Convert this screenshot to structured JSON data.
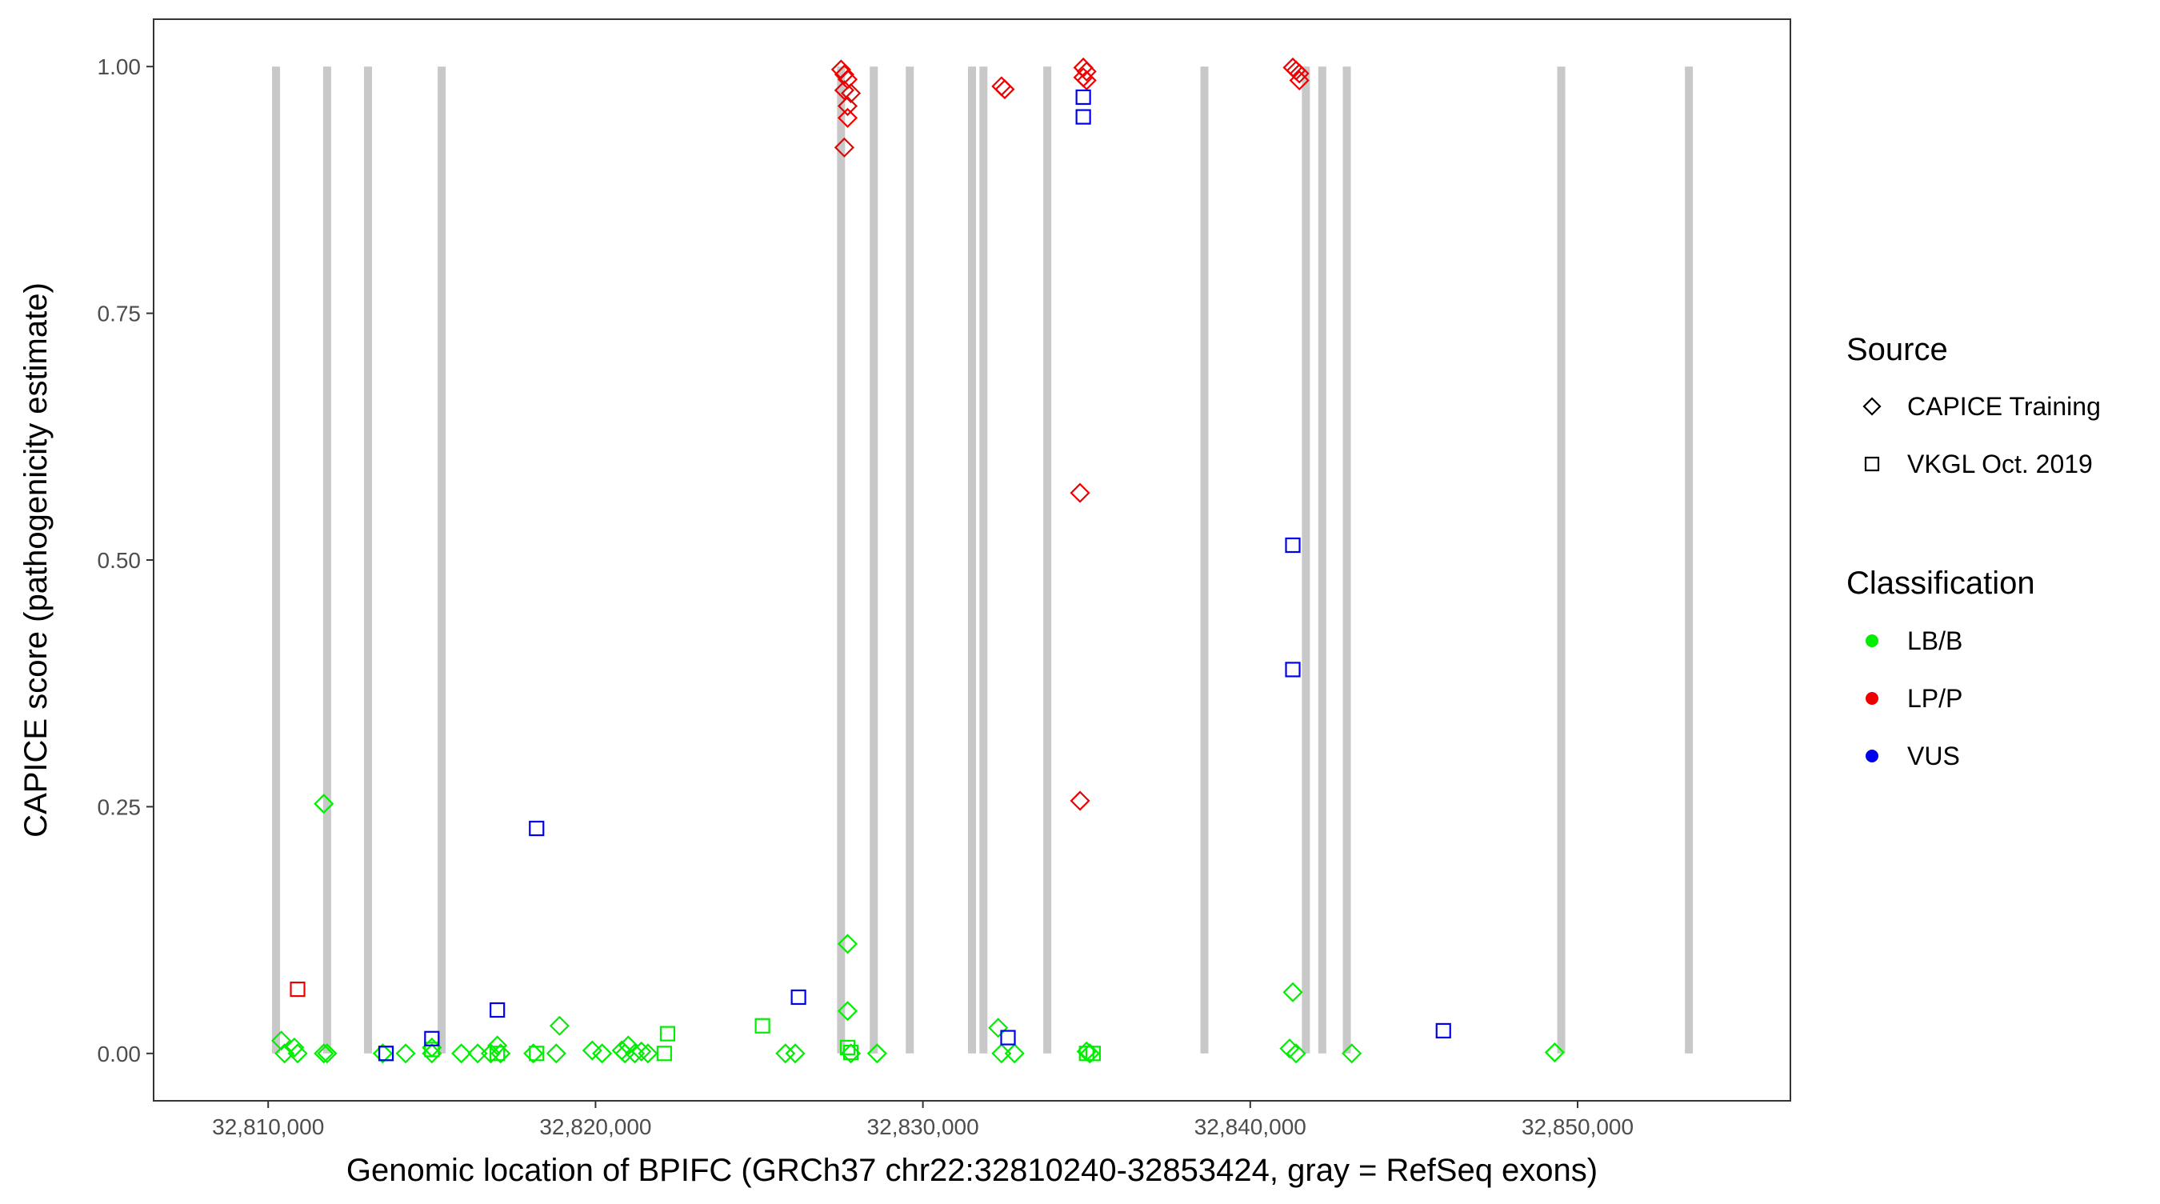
{
  "chart_data": {
    "type": "scatter",
    "title": "",
    "xlabel": "Genomic location of BPIFC (GRCh37 chr22:32810240-32853424, gray = RefSeq exons)",
    "ylabel": "CAPICE score (pathogenicity estimate)",
    "xlim": [
      32806500,
      32856500
    ],
    "ylim": [
      -0.048,
      1.048
    ],
    "x_ticks": [
      32810000,
      32820000,
      32830000,
      32840000,
      32850000
    ],
    "x_tick_labels": [
      "32,810,000",
      "32,820,000",
      "32,830,000",
      "32,840,000",
      "32,850,000"
    ],
    "y_ticks": [
      0,
      0.25,
      0.5,
      0.75,
      1
    ],
    "y_tick_labels": [
      "0.00",
      "0.25",
      "0.50",
      "0.75",
      "1.00"
    ],
    "grid": false,
    "legend_position": "right",
    "exon_color": "#c8c8c8",
    "exons": [
      32810240,
      32811800,
      32813050,
      32815300,
      32827500,
      32828500,
      32829600,
      32831500,
      32831850,
      32833800,
      32838600,
      32841700,
      32842200,
      32842950,
      32849500,
      32853400
    ],
    "legend": {
      "source_title": "Source",
      "source_items": [
        {
          "label": "CAPICE Training",
          "shape": "diamond"
        },
        {
          "label": "VKGL Oct. 2019",
          "shape": "square"
        }
      ],
      "class_title": "Classification",
      "class_items": [
        {
          "label": "LB/B",
          "color": "#00ee00"
        },
        {
          "label": "LP/P",
          "color": "#ee0000"
        },
        {
          "label": "VUS",
          "color": "#0000ee"
        }
      ]
    },
    "series": [
      {
        "source": "CAPICE Training",
        "classification": "LB/B",
        "shape": "diamond",
        "color": "#00ee00",
        "points": [
          [
            32810400,
            0.013
          ],
          [
            32810500,
            0.0
          ],
          [
            32810800,
            0.006
          ],
          [
            32810900,
            0.0
          ],
          [
            32811700,
            0.253
          ],
          [
            32811700,
            0.0
          ],
          [
            32811800,
            0.0
          ],
          [
            32813500,
            0.0
          ],
          [
            32814200,
            0.0
          ],
          [
            32815000,
            0.006
          ],
          [
            32815000,
            0.0
          ],
          [
            32815900,
            0.0
          ],
          [
            32816400,
            0.0
          ],
          [
            32816800,
            0.0
          ],
          [
            32817000,
            0.008
          ],
          [
            32817100,
            0.0
          ],
          [
            32818100,
            0.0
          ],
          [
            32818800,
            0.0
          ],
          [
            32818900,
            0.028
          ],
          [
            32819900,
            0.003
          ],
          [
            32820200,
            0.0
          ],
          [
            32820800,
            0.003
          ],
          [
            32820900,
            0.0
          ],
          [
            32821000,
            0.008
          ],
          [
            32821200,
            0.0
          ],
          [
            32821400,
            0.002
          ],
          [
            32821600,
            0.0
          ],
          [
            32825800,
            0.0
          ],
          [
            32826100,
            0.0
          ],
          [
            32827700,
            0.111
          ],
          [
            32827700,
            0.043
          ],
          [
            32827800,
            0.0
          ],
          [
            32828600,
            0.0
          ],
          [
            32832300,
            0.026
          ],
          [
            32832400,
            0.0
          ],
          [
            32832800,
            0.0
          ],
          [
            32835000,
            0.002
          ],
          [
            32835100,
            0.0
          ],
          [
            32841200,
            0.005
          ],
          [
            32841300,
            0.062
          ],
          [
            32841400,
            0.0
          ],
          [
            32843100,
            0.0
          ],
          [
            32849300,
            0.001
          ]
        ]
      },
      {
        "source": "VKGL Oct. 2019",
        "classification": "LB/B",
        "shape": "square",
        "color": "#00ee00",
        "points": [
          [
            32813600,
            0.0
          ],
          [
            32815000,
            0.004
          ],
          [
            32817000,
            0.0
          ],
          [
            32818200,
            0.0
          ],
          [
            32822200,
            0.02
          ],
          [
            32822100,
            0.0
          ],
          [
            32825100,
            0.028
          ],
          [
            32827700,
            0.006
          ],
          [
            32827800,
            0.001
          ],
          [
            32835000,
            0.0
          ],
          [
            32835200,
            0.0
          ]
        ]
      },
      {
        "source": "CAPICE Training",
        "classification": "LP/P",
        "shape": "diamond",
        "color": "#ee0000",
        "points": [
          [
            32827500,
            0.997
          ],
          [
            32827600,
            0.992
          ],
          [
            32827700,
            0.987
          ],
          [
            32827600,
            0.976
          ],
          [
            32827700,
            0.96
          ],
          [
            32827800,
            0.973
          ],
          [
            32827700,
            0.948
          ],
          [
            32827600,
            0.918
          ],
          [
            32832400,
            0.98
          ],
          [
            32832500,
            0.977
          ],
          [
            32834900,
            0.999
          ],
          [
            32835000,
            0.995
          ],
          [
            32834900,
            0.989
          ],
          [
            32835000,
            0.986
          ],
          [
            32834800,
            0.568
          ],
          [
            32834800,
            0.256
          ],
          [
            32841300,
            0.999
          ],
          [
            32841400,
            0.996
          ],
          [
            32841500,
            0.993
          ],
          [
            32841500,
            0.986
          ]
        ]
      },
      {
        "source": "VKGL Oct. 2019",
        "classification": "LP/P",
        "shape": "square",
        "color": "#ee0000",
        "points": [
          [
            32810900,
            0.065
          ]
        ]
      },
      {
        "source": "VKGL Oct. 2019",
        "classification": "VUS",
        "shape": "square",
        "color": "#0000ee",
        "points": [
          [
            32813600,
            0.0
          ],
          [
            32815000,
            0.015
          ],
          [
            32817000,
            0.044
          ],
          [
            32818200,
            0.228
          ],
          [
            32826200,
            0.057
          ],
          [
            32832600,
            0.016
          ],
          [
            32834900,
            0.969
          ],
          [
            32834900,
            0.949
          ],
          [
            32841300,
            0.515
          ],
          [
            32841300,
            0.389
          ],
          [
            32845900,
            0.023
          ]
        ]
      }
    ]
  }
}
